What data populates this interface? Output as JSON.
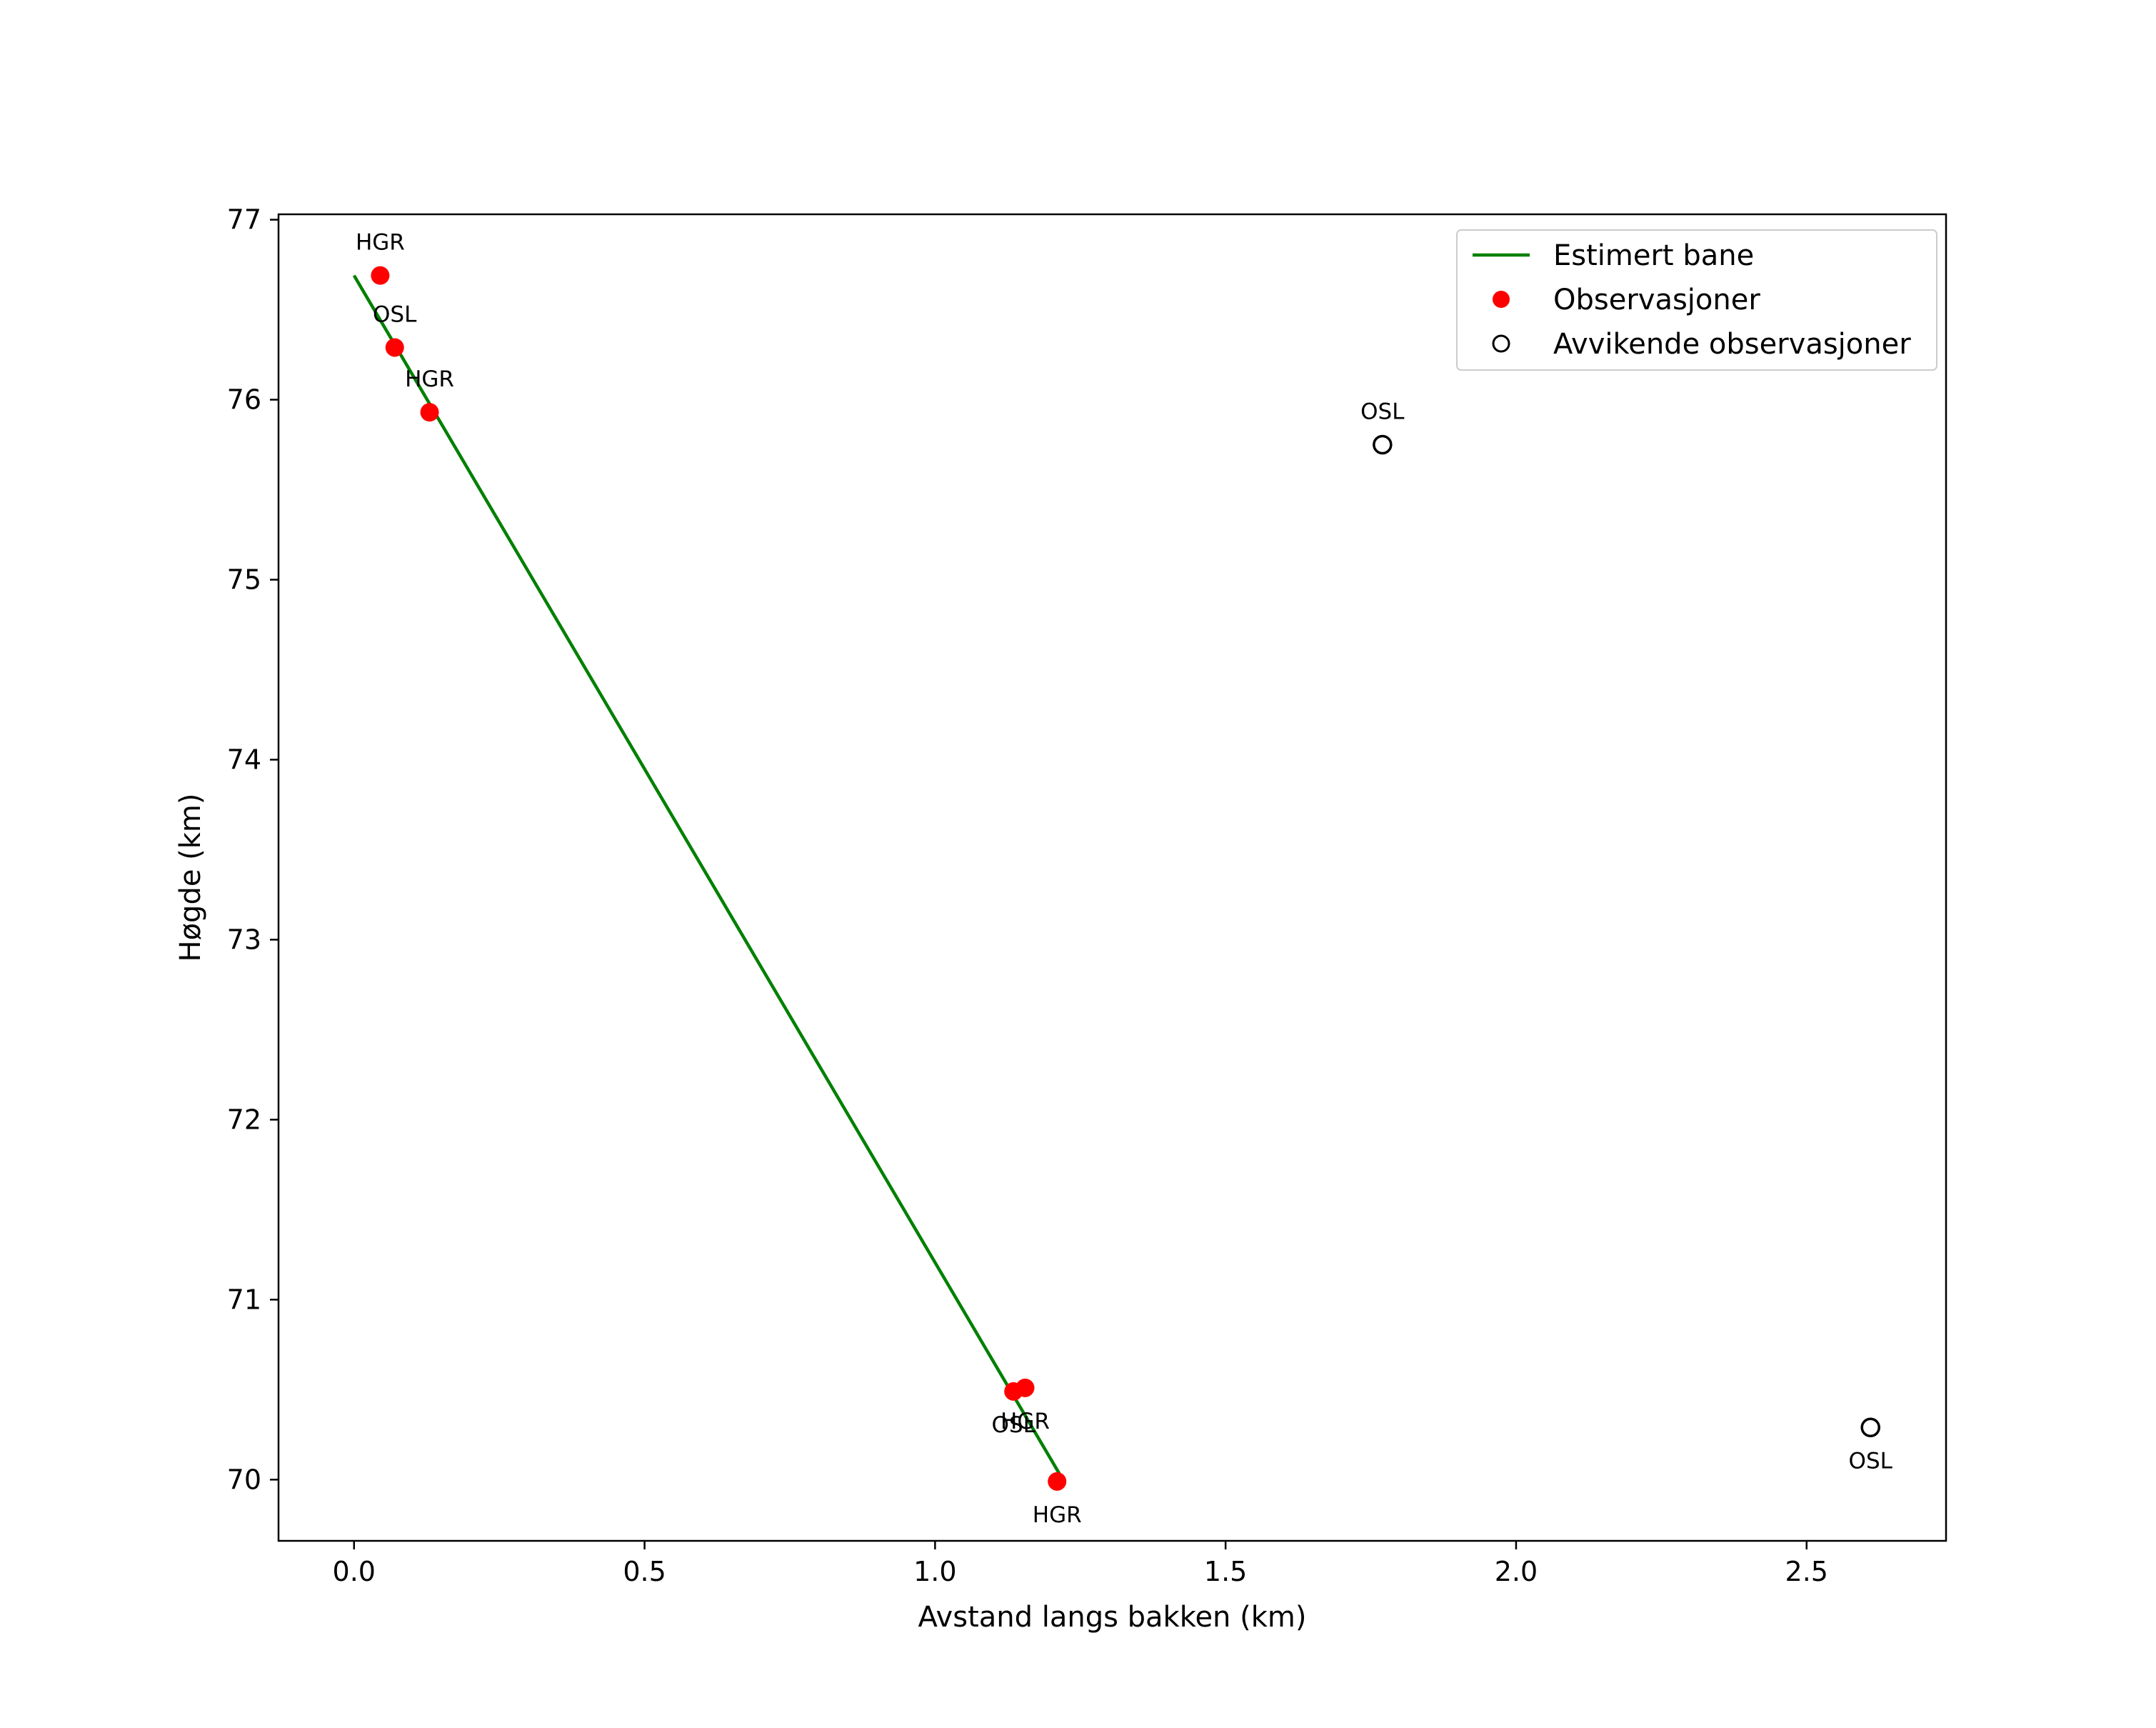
{
  "chart_data": {
    "type": "scatter",
    "title": "",
    "xlabel": "Avstand langs bakken (km)",
    "ylabel": "Høgde (km)",
    "xlim": [
      -0.13,
      2.74
    ],
    "ylim": [
      69.66,
      77.03
    ],
    "xticks": [
      0.0,
      0.5,
      1.0,
      1.5,
      2.0,
      2.5
    ],
    "xtick_labels": [
      "0.0",
      "0.5",
      "1.0",
      "1.5",
      "2.0",
      "2.5"
    ],
    "yticks": [
      70,
      71,
      72,
      73,
      74,
      75,
      76,
      77
    ],
    "ytick_labels": [
      "70",
      "71",
      "72",
      "73",
      "74",
      "75",
      "76",
      "77"
    ],
    "grid": false,
    "legend_position": "top-right",
    "series": [
      {
        "name": "Estimert bane",
        "kind": "line",
        "color": "#008000",
        "x": [
          0.0,
          1.22
        ],
        "y": [
          76.69,
          70.0
        ]
      },
      {
        "name": "Observasjoner",
        "kind": "scatter",
        "color": "#ff0000",
        "points": [
          {
            "x": 0.045,
            "y": 76.69,
            "label": "HGR",
            "label_pos": "above"
          },
          {
            "x": 0.07,
            "y": 76.29,
            "label": "OSL",
            "label_pos": "above"
          },
          {
            "x": 0.13,
            "y": 75.93,
            "label": "HGR",
            "label_pos": "above"
          },
          {
            "x": 1.135,
            "y": 70.49,
            "label": "OSL",
            "label_pos": "below"
          },
          {
            "x": 1.155,
            "y": 70.51,
            "label": "HGR",
            "label_pos": "below"
          },
          {
            "x": 1.21,
            "y": 69.99,
            "label": "HGR",
            "label_pos": "below"
          }
        ]
      },
      {
        "name": "Avvikende observasjoner",
        "kind": "scatter-hollow",
        "color": "#000000",
        "points": [
          {
            "x": 1.77,
            "y": 75.75,
            "label": "OSL",
            "label_pos": "above"
          },
          {
            "x": 2.61,
            "y": 70.29,
            "label": "OSL",
            "label_pos": "below"
          }
        ]
      }
    ]
  }
}
